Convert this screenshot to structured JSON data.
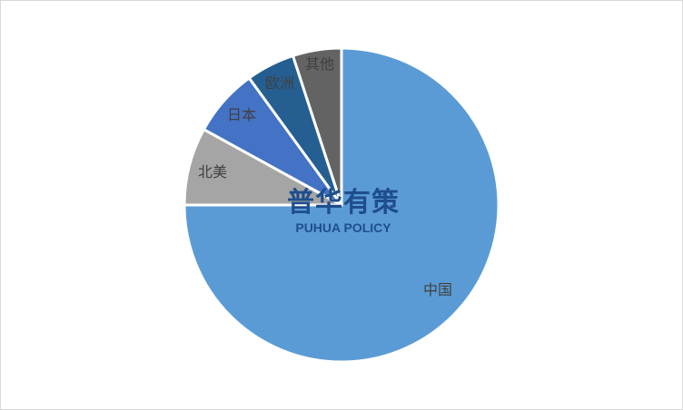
{
  "chart_data": {
    "type": "pie",
    "title": "",
    "start_angle": "12 o'clock",
    "direction": "clockwise",
    "categories": [
      "中国",
      "北美",
      "日本",
      "欧洲",
      "其他"
    ],
    "values": [
      75,
      8,
      7,
      5,
      5
    ],
    "colors": [
      "#5b9bd5",
      "#a5a5a5",
      "#4472c4",
      "#255e91",
      "#636363"
    ],
    "legend": "none",
    "data_labels": "category names"
  },
  "watermark": {
    "cn": "普华有策",
    "en": "PUHUA POLICY"
  }
}
